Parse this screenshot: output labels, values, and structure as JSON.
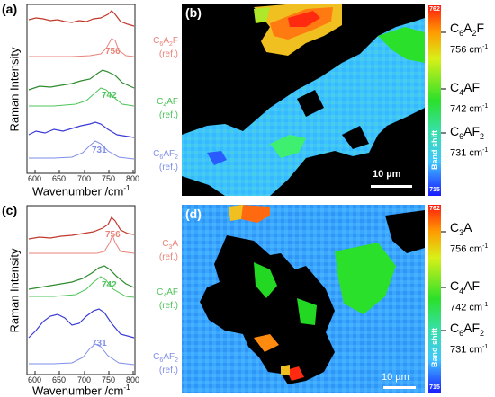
{
  "panels": {
    "a": {
      "label": "(a)"
    },
    "b": {
      "label": "(b)",
      "scalebar": "10 µm"
    },
    "c": {
      "label": "(c)"
    },
    "d": {
      "label": "(d)",
      "scalebar": "10 µm"
    }
  },
  "spectra_axes": {
    "ylabel": "Raman Intensity",
    "xlabel": "Wavenumber /cm",
    "xlabel_sup": "-1",
    "xticks": [
      "600",
      "650",
      "700",
      "750",
      "800"
    ]
  },
  "top_spectra": {
    "peaks": [
      "756",
      "742",
      "731"
    ],
    "refs": [
      {
        "main": "C",
        "sub1": "6",
        "main2": "A",
        "sub2": "2",
        "main3": "F",
        "ref": "(ref.)"
      },
      {
        "main": "C",
        "sub1": "4",
        "main2": "AF",
        "ref": "(ref.)"
      },
      {
        "main": "C",
        "sub1": "6",
        "main2": "AF",
        "sub2": "2",
        "ref": "(ref.)"
      }
    ]
  },
  "bottom_spectra": {
    "peaks": [
      "756",
      "742",
      "731"
    ],
    "refs": [
      {
        "main": "C",
        "sub1": "3",
        "main2": "A",
        "ref": "(ref.)"
      },
      {
        "main": "C",
        "sub1": "4",
        "main2": "AF",
        "ref": "(ref.)"
      },
      {
        "main": "C",
        "sub1": "6",
        "main2": "AF",
        "sub2": "2",
        "ref": "(ref.)"
      }
    ]
  },
  "colorbar": {
    "max": "762",
    "min": "715",
    "title": "Band shift"
  },
  "colorbar_labels_top": [
    {
      "name": "C",
      "sub": "6",
      "name2": "A",
      "sub2": "2",
      "name3": "F",
      "value": "756 cm",
      "sup": "-1"
    },
    {
      "name": "C",
      "sub": "4",
      "name2": "AF",
      "value": "742 cm",
      "sup": "-1"
    },
    {
      "name": "C",
      "sub": "6",
      "name2": "AF",
      "sub2": "2",
      "value": "731 cm",
      "sup": "-1"
    }
  ],
  "colorbar_labels_bottom": [
    {
      "name": "C",
      "sub": "3",
      "name2": "A",
      "value": "756 cm",
      "sup": "-1"
    },
    {
      "name": "C",
      "sub": "4",
      "name2": "AF",
      "value": "742 cm",
      "sup": "-1"
    },
    {
      "name": "C",
      "sub": "6",
      "name2": "AF",
      "sub2": "2",
      "value": "731 cm",
      "sup": "-1"
    }
  ],
  "colors": {
    "red": "#c0392b",
    "red_light": "#e8837a",
    "green": "#2e8b2e",
    "green_light": "#4ec45a",
    "blue": "#3b3bd6",
    "blue_light": "#7f8ee8"
  }
}
